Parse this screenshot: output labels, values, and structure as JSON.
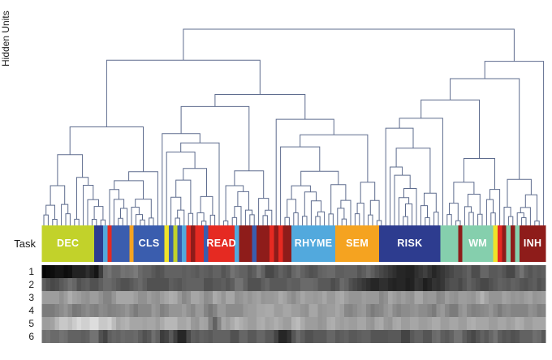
{
  "figure_labels": {
    "task_axis": "Task",
    "units_axis": "Hidden Units"
  },
  "hidden_unit_rows": [
    "1",
    "2",
    "3",
    "4",
    "5",
    "6"
  ],
  "task_colors": {
    "lime": "#c2d22a",
    "blue": "#3a5dae",
    "sky": "#52a9dd",
    "red": "#e52a22",
    "darkred": "#8e1c1a",
    "orange": "#f5a320",
    "navy": "#2d3c8f",
    "mint": "#85cfad",
    "yellow": "#efe32a"
  },
  "bar_label_color": "#ffffff",
  "chart_data": {
    "type": "heatmap",
    "title": "",
    "description": "Hierarchical clustering dendrogram over 115 task-condition columns, with a task color bar and a 6-row hidden-unit activation heatmap (grayscale).",
    "dendrogram": {
      "leaves": 115,
      "orientation": "top",
      "line_color": "#5e6c8e",
      "root_split_fraction": 0.68,
      "seed": 1337
    },
    "task_legend": [
      {
        "task": "DEC",
        "color": "lime"
      },
      {
        "task": "CLS",
        "color": "blue"
      },
      {
        "task": "READ",
        "color": "red"
      },
      {
        "task": "RHYME",
        "color": "sky"
      },
      {
        "task": "SEM",
        "color": "orange"
      },
      {
        "task": "RISK",
        "color": "navy"
      },
      {
        "task": "WM",
        "color": "mint"
      },
      {
        "task": "INH",
        "color": "darkred"
      }
    ],
    "task_segments": [
      {
        "count": 12,
        "color": "lime",
        "label": "DEC"
      },
      {
        "count": 2,
        "color": "navy"
      },
      {
        "count": 1,
        "color": "sky"
      },
      {
        "count": 1,
        "color": "red"
      },
      {
        "count": 4,
        "color": "blue"
      },
      {
        "count": 1,
        "color": "orange"
      },
      {
        "count": 7,
        "color": "blue",
        "label": "CLS"
      },
      {
        "count": 1,
        "color": "yellow"
      },
      {
        "count": 1,
        "color": "blue"
      },
      {
        "count": 1,
        "color": "lime"
      },
      {
        "count": 1,
        "color": "blue"
      },
      {
        "count": 1,
        "color": "sky"
      },
      {
        "count": 1,
        "color": "red"
      },
      {
        "count": 1,
        "color": "darkred"
      },
      {
        "count": 2,
        "color": "red"
      },
      {
        "count": 1,
        "color": "blue"
      },
      {
        "count": 6,
        "color": "red",
        "label": "READ"
      },
      {
        "count": 1,
        "color": "sky"
      },
      {
        "count": 3,
        "color": "darkred"
      },
      {
        "count": 1,
        "color": "blue"
      },
      {
        "count": 3,
        "color": "darkred"
      },
      {
        "count": 1,
        "color": "red"
      },
      {
        "count": 1,
        "color": "darkred"
      },
      {
        "count": 1,
        "color": "red"
      },
      {
        "count": 2,
        "color": "darkred"
      },
      {
        "count": 10,
        "color": "sky",
        "label": "RHYME"
      },
      {
        "count": 10,
        "color": "orange",
        "label": "SEM"
      },
      {
        "count": 14,
        "color": "navy",
        "label": "RISK"
      },
      {
        "count": 4,
        "color": "mint"
      },
      {
        "count": 1,
        "color": "darkred"
      },
      {
        "count": 7,
        "color": "mint",
        "label": "WM"
      },
      {
        "count": 1,
        "color": "yellow"
      },
      {
        "count": 1,
        "color": "red"
      },
      {
        "count": 1,
        "color": "darkred"
      },
      {
        "count": 1,
        "color": "mint"
      },
      {
        "count": 1,
        "color": "darkred"
      },
      {
        "count": 1,
        "color": "mint"
      },
      {
        "count": 6,
        "color": "darkred",
        "label": "INH"
      }
    ],
    "heatmap": {
      "row_labels": [
        "1",
        "2",
        "3",
        "4",
        "5",
        "6"
      ],
      "col_count": 115,
      "palette": "grayscale",
      "scale": "hex digit per column: 0=black, f=white",
      "rows_hex": [
        "0102110321420386749578657463847565738465745865745863547546847365758466574584635241321425314253645743856474536854746",
        "6453748645736485746374854637284565748356474586736458374657394856473576453423142313221431242354635746354657384645736",
        "9a8b79c8a97b8a697c8b9a88a97b8c9a78b9a87c98ab79a89b7a98c8a79b8a98c7a9b98a7b89a78b98a97ba89a78a97b8a89c98a7b98a89b7a9",
        "78697a8687986a78797a86987a9698a7b87a98689a79889a8b9ab8a9b8a97ba89a8b98798a86979a87988a79869a7869a78797a86988796a878",
        "9a8cbdacebdcfacdb9ac8b9a9b8ac9d8ab97c8a29b8ac9b8a9c8ab9a8bc9a8b7a9c8a9a8b9a7ba98ab8a9b8a9ab8a9b8a9c8b9a8b9a8c9a8b9a",
        "6857684756578436748567554863291405738465748356746583741325846374658375647483654738246574568465784635746854736574865"
      ]
    }
  }
}
